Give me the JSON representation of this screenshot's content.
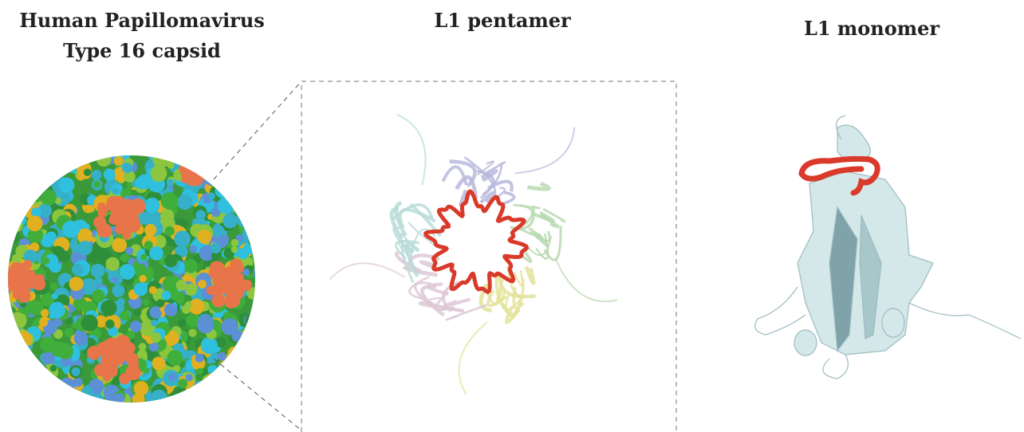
{
  "panels": [
    {
      "title": [
        "Human Papillomavirus",
        "Type 16 capsid"
      ]
    },
    {
      "title": [
        "L1 pentamer"
      ]
    },
    {
      "title": [
        "L1 monomer"
      ]
    }
  ]
}
